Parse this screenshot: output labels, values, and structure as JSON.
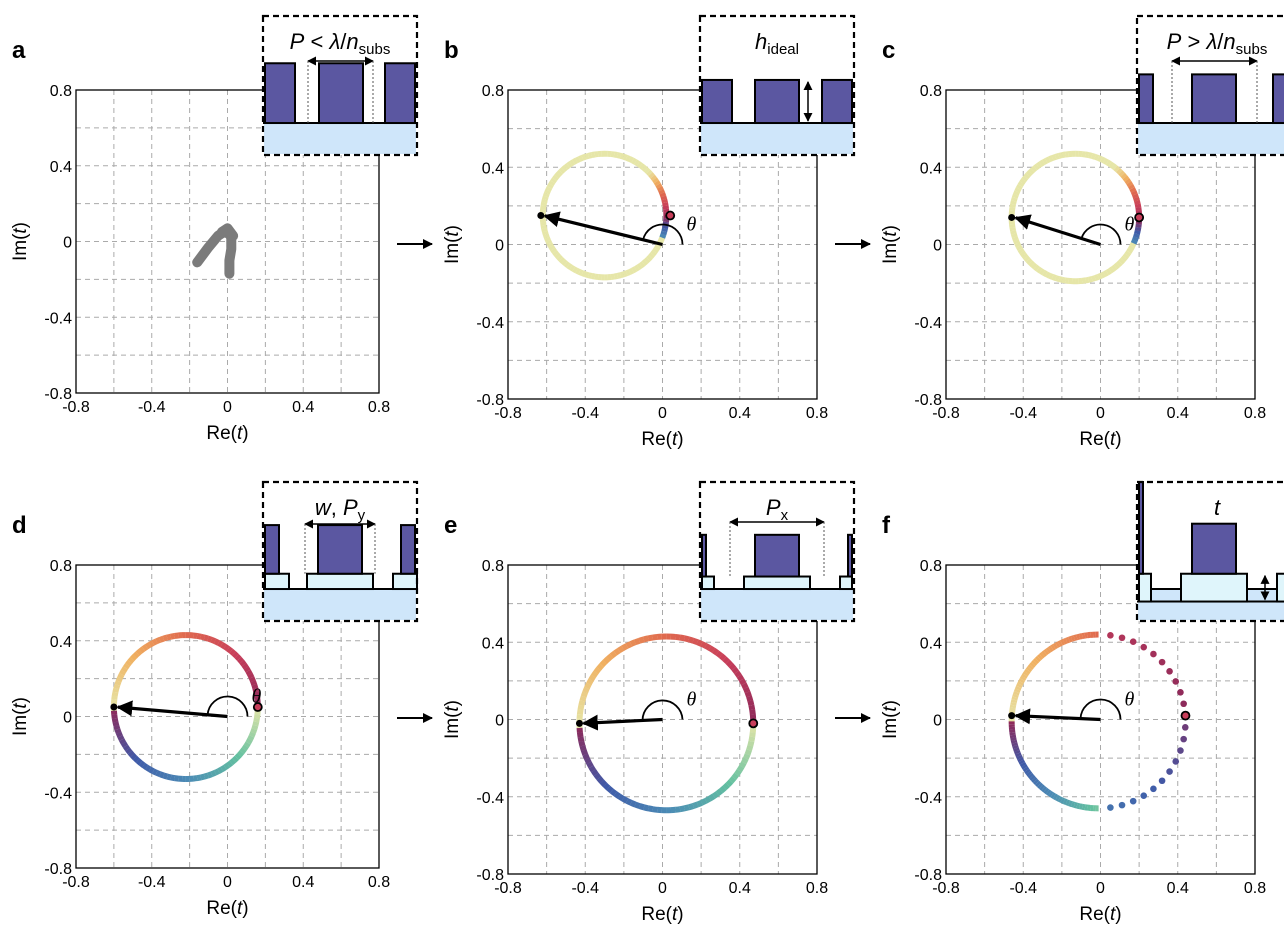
{
  "colors": {
    "pillar": "#5b57a1",
    "substrate": "#cfe6fa",
    "layer": "#dff5fb",
    "trajectory": "#7b7b7b",
    "spectral": [
      "#e6e6a8",
      "#f0b060",
      "#e06a4e",
      "#c83e5a",
      "#8e2a5a",
      "#3f5aa8",
      "#4b8bb5",
      "#63c0a0",
      "#e6e6a8"
    ]
  },
  "labels": {
    "xlabel_prefix": "Re(",
    "xlabel_var": "t",
    "xlabel_suffix": ")",
    "ylabel_prefix": "Im(",
    "ylabel_var": "t",
    "ylabel_suffix": ")",
    "theta": "θ"
  },
  "chart_data": [
    {
      "id": "a",
      "type": "line",
      "letter": "a",
      "xlim": [
        -0.8,
        0.8
      ],
      "ylim": [
        -0.8,
        0.8
      ],
      "xticks": [
        "-0.8",
        "-0.4",
        "0",
        "0.4",
        "0.8"
      ],
      "yticks": [
        "0.8",
        "0.4",
        "0",
        "-0.4",
        "-0.8"
      ],
      "grid": true,
      "trajectory": [
        [
          -0.16,
          -0.11
        ],
        [
          -0.1,
          -0.03
        ],
        [
          -0.05,
          0.03
        ],
        [
          -0.02,
          0.05
        ],
        [
          0.01,
          0.04
        ],
        [
          0.02,
          0.02
        ],
        [
          0.02,
          -0.04
        ],
        [
          0.01,
          -0.1
        ],
        [
          0.01,
          -0.17
        ]
      ],
      "trajectory_hook": [
        [
          -0.03,
          0.05
        ],
        [
          0.0,
          0.07
        ],
        [
          0.03,
          0.03
        ]
      ],
      "inset": {
        "parts": [
          {
            "t": "P",
            "i": true
          },
          {
            "t": " < ",
            "i": false
          },
          {
            "t": "λ",
            "i": true
          },
          {
            "t": "/",
            "i": false
          },
          {
            "t": "n",
            "i": true
          },
          {
            "t": "subs",
            "i": false,
            "sub": true
          }
        ]
      }
    },
    {
      "id": "b",
      "type": "line",
      "letter": "b",
      "xlim": [
        -0.8,
        0.8
      ],
      "ylim": [
        -0.8,
        0.8
      ],
      "xticks": [
        "-0.8",
        "-0.4",
        "0",
        "0.4",
        "0.8"
      ],
      "yticks": [
        "0.8",
        "0.4",
        "0",
        "-0.4",
        "-0.8"
      ],
      "grid": true,
      "circle": {
        "center": [
          -0.3,
          0.15
        ],
        "radius": 0.32
      },
      "start_point": [
        0.04,
        0.15
      ],
      "end_point": [
        -0.63,
        0.15
      ],
      "inset": {
        "parts": [
          {
            "t": "h",
            "i": true
          },
          {
            "t": "ideal",
            "i": false,
            "sub": true
          }
        ]
      }
    },
    {
      "id": "c",
      "type": "line",
      "letter": "c",
      "xlim": [
        -0.8,
        0.8
      ],
      "ylim": [
        -0.8,
        0.8
      ],
      "xticks": [
        "-0.8",
        "-0.4",
        "0",
        "0.4",
        "0.8"
      ],
      "yticks": [
        "0.8",
        "0.4",
        "0",
        "-0.4",
        "-0.8"
      ],
      "grid": true,
      "circle": {
        "center": [
          -0.13,
          0.14
        ],
        "radius": 0.33
      },
      "start_point": [
        0.2,
        0.14
      ],
      "end_point": [
        -0.46,
        0.14
      ],
      "inset": {
        "parts": [
          {
            "t": "P",
            "i": true
          },
          {
            "t": " > ",
            "i": false
          },
          {
            "t": "λ",
            "i": true
          },
          {
            "t": "/",
            "i": false
          },
          {
            "t": "n",
            "i": true
          },
          {
            "t": "subs",
            "i": false,
            "sub": true
          }
        ]
      }
    },
    {
      "id": "d",
      "type": "line",
      "letter": "d",
      "xlim": [
        -0.8,
        0.8
      ],
      "ylim": [
        -0.8,
        0.8
      ],
      "xticks": [
        "-0.8",
        "-0.4",
        "0",
        "0.4",
        "0.8"
      ],
      "yticks": [
        "0.8",
        "0.4",
        "0",
        "-0.4",
        "-0.8"
      ],
      "grid": true,
      "circle": {
        "center": [
          -0.22,
          0.05
        ],
        "radius": 0.38
      },
      "start_point": [
        0.16,
        0.05
      ],
      "end_point": [
        -0.6,
        0.05
      ],
      "inset": {
        "parts": [
          {
            "t": "w",
            "i": true
          },
          {
            "t": ", ",
            "i": false
          },
          {
            "t": "P",
            "i": true
          },
          {
            "t": "y",
            "i": false,
            "sub": true
          }
        ]
      }
    },
    {
      "id": "e",
      "type": "line",
      "letter": "e",
      "xlim": [
        -0.8,
        0.8
      ],
      "ylim": [
        -0.8,
        0.8
      ],
      "xticks": [
        "-0.8",
        "-0.4",
        "0",
        "0.4",
        "0.8"
      ],
      "yticks": [
        "0.8",
        "0.4",
        "0",
        "-0.4",
        "-0.8"
      ],
      "grid": true,
      "circle": {
        "center": [
          0.02,
          -0.02
        ],
        "radius": 0.45
      },
      "start_point": [
        0.47,
        -0.02
      ],
      "end_point": [
        -0.43,
        -0.02
      ],
      "inset": {
        "parts": [
          {
            "t": "P",
            "i": true
          },
          {
            "t": "x",
            "i": false,
            "sub": true
          }
        ]
      }
    },
    {
      "id": "f",
      "type": "scatter",
      "letter": "f",
      "xlim": [
        -0.8,
        0.8
      ],
      "ylim": [
        -0.8,
        0.8
      ],
      "xticks": [
        "-0.8",
        "-0.4",
        "0",
        "0.4",
        "0.8"
      ],
      "yticks": [
        "0.8",
        "0.4",
        "0",
        "-0.4",
        "-0.8"
      ],
      "grid": true,
      "circle": {
        "center": [
          -0.01,
          -0.01
        ],
        "radius": 0.45
      },
      "start_point": [
        0.44,
        0.02
      ],
      "end_point": [
        -0.46,
        0.02
      ],
      "inset": {
        "parts": [
          {
            "t": "t",
            "i": true
          }
        ]
      }
    }
  ]
}
